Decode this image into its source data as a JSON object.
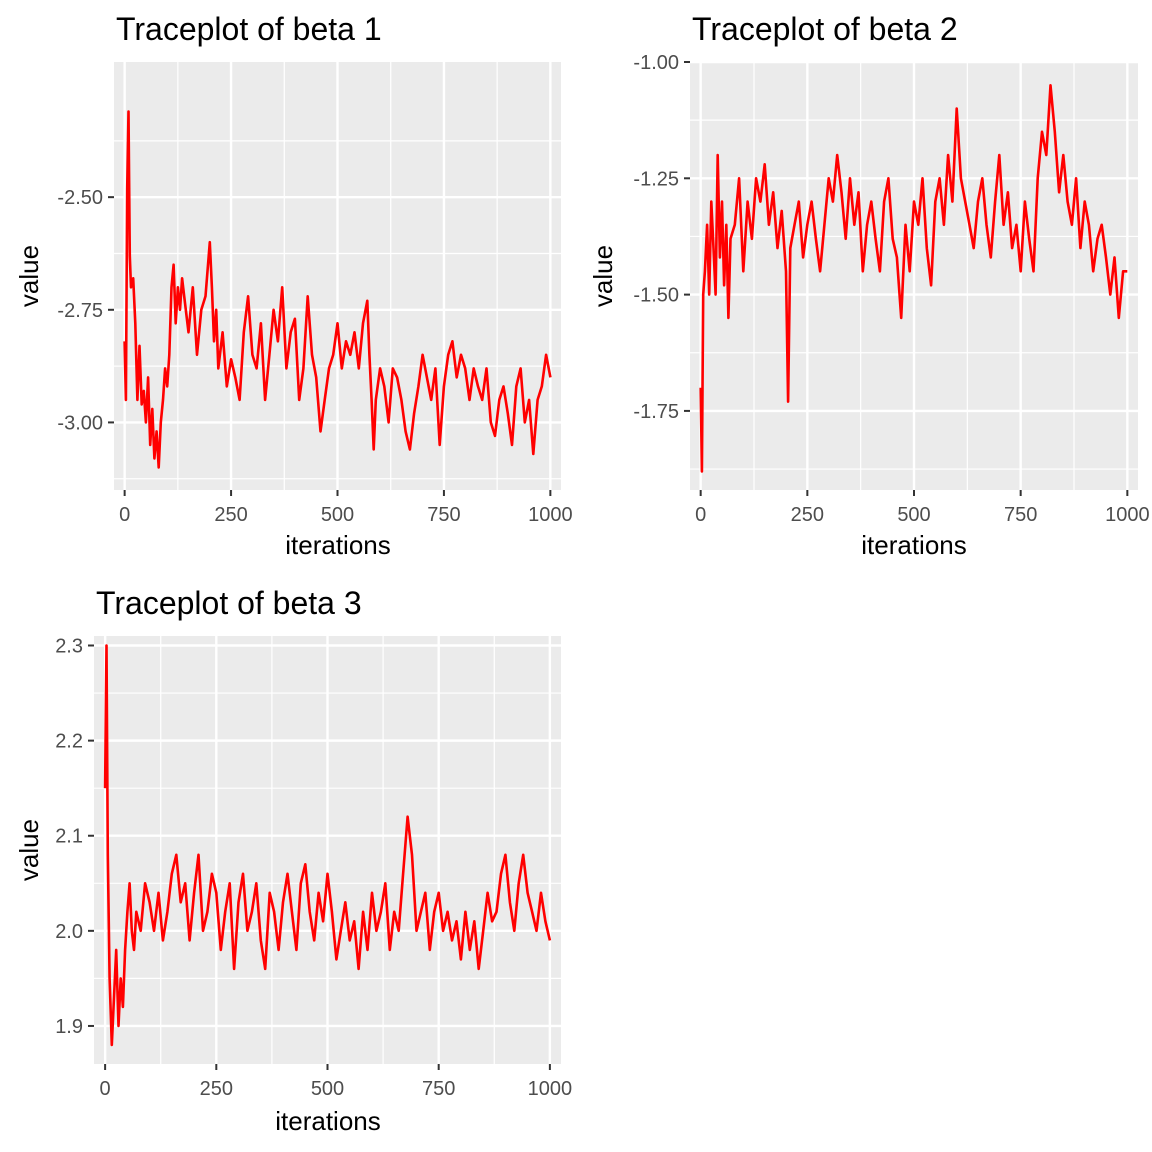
{
  "chart_data": [
    {
      "type": "line",
      "title": "Traceplot of beta 1",
      "xlabel": "iterations",
      "ylabel": "value",
      "xlim": [
        -25,
        1025
      ],
      "ylim": [
        -3.15,
        -2.2
      ],
      "xticks": [
        0,
        250,
        500,
        750,
        1000
      ],
      "yticks": [
        -2.5,
        -2.75,
        -3.0
      ],
      "ytick_labels": [
        "-2.50",
        "-2.75",
        "-3.00"
      ],
      "grid": true,
      "line_color": "#ff0000",
      "series": [
        {
          "x": [
            0,
            3,
            6,
            9,
            12,
            15,
            20,
            25,
            30,
            35,
            40,
            45,
            50,
            55,
            60,
            65,
            70,
            75,
            80,
            85,
            90,
            95,
            100,
            105,
            110,
            115,
            120,
            125,
            130,
            135,
            140,
            150,
            160,
            170,
            180,
            190,
            200,
            205,
            210,
            215,
            220,
            230,
            240,
            250,
            260,
            270,
            280,
            290,
            300,
            310,
            320,
            330,
            340,
            350,
            360,
            370,
            380,
            390,
            400,
            410,
            420,
            430,
            440,
            450,
            460,
            470,
            480,
            490,
            500,
            510,
            520,
            530,
            540,
            550,
            560,
            570,
            575,
            580,
            585,
            590,
            600,
            610,
            620,
            630,
            640,
            650,
            660,
            670,
            680,
            690,
            700,
            710,
            720,
            730,
            740,
            750,
            760,
            770,
            780,
            790,
            800,
            810,
            820,
            830,
            840,
            850,
            860,
            870,
            880,
            890,
            900,
            910,
            920,
            930,
            940,
            950,
            960,
            970,
            980,
            990,
            1000
          ],
          "y": [
            -2.82,
            -2.95,
            -2.48,
            -2.31,
            -2.63,
            -2.7,
            -2.68,
            -2.78,
            -2.95,
            -2.83,
            -2.96,
            -2.93,
            -3.0,
            -2.9,
            -3.05,
            -2.97,
            -3.08,
            -3.02,
            -3.1,
            -3.0,
            -2.95,
            -2.88,
            -2.92,
            -2.85,
            -2.7,
            -2.65,
            -2.78,
            -2.7,
            -2.75,
            -2.68,
            -2.72,
            -2.8,
            -2.7,
            -2.85,
            -2.75,
            -2.72,
            -2.6,
            -2.7,
            -2.82,
            -2.75,
            -2.88,
            -2.8,
            -2.92,
            -2.86,
            -2.9,
            -2.95,
            -2.8,
            -2.72,
            -2.85,
            -2.88,
            -2.78,
            -2.95,
            -2.85,
            -2.75,
            -2.82,
            -2.7,
            -2.88,
            -2.8,
            -2.77,
            -2.95,
            -2.88,
            -2.72,
            -2.85,
            -2.9,
            -3.02,
            -2.95,
            -2.88,
            -2.85,
            -2.78,
            -2.88,
            -2.82,
            -2.85,
            -2.8,
            -2.88,
            -2.78,
            -2.73,
            -2.85,
            -2.95,
            -3.06,
            -2.95,
            -2.88,
            -2.92,
            -3.0,
            -2.88,
            -2.9,
            -2.95,
            -3.02,
            -3.06,
            -2.98,
            -2.92,
            -2.85,
            -2.9,
            -2.95,
            -2.88,
            -3.05,
            -2.92,
            -2.85,
            -2.82,
            -2.9,
            -2.85,
            -2.88,
            -2.95,
            -2.88,
            -2.92,
            -2.95,
            -2.88,
            -3.0,
            -3.03,
            -2.95,
            -2.92,
            -2.98,
            -3.05,
            -2.92,
            -2.88,
            -3.0,
            -2.95,
            -3.07,
            -2.95,
            -2.92,
            -2.85,
            -2.9
          ]
        }
      ]
    },
    {
      "type": "line",
      "title": "Traceplot of beta 2",
      "xlabel": "iterations",
      "ylabel": "value",
      "xlim": [
        -25,
        1025
      ],
      "ylim": [
        -1.92,
        -1.0
      ],
      "xticks": [
        0,
        250,
        500,
        750,
        1000
      ],
      "yticks": [
        -1.0,
        -1.25,
        -1.5,
        -1.75
      ],
      "ytick_labels": [
        "-1.00",
        "-1.25",
        "-1.50",
        "-1.75"
      ],
      "grid": true,
      "line_color": "#ff0000",
      "series": [
        {
          "x": [
            0,
            3,
            6,
            10,
            15,
            20,
            25,
            30,
            35,
            40,
            45,
            50,
            55,
            60,
            65,
            70,
            80,
            90,
            100,
            110,
            120,
            130,
            140,
            150,
            160,
            170,
            180,
            190,
            200,
            205,
            210,
            220,
            230,
            240,
            250,
            260,
            270,
            280,
            290,
            300,
            310,
            320,
            330,
            340,
            350,
            360,
            370,
            380,
            390,
            400,
            410,
            420,
            430,
            440,
            450,
            460,
            470,
            480,
            490,
            500,
            510,
            520,
            530,
            540,
            550,
            560,
            570,
            580,
            590,
            600,
            610,
            620,
            630,
            640,
            650,
            660,
            670,
            680,
            690,
            700,
            710,
            720,
            730,
            740,
            750,
            760,
            770,
            780,
            790,
            800,
            810,
            820,
            830,
            840,
            850,
            860,
            870,
            880,
            890,
            900,
            910,
            920,
            930,
            940,
            950,
            960,
            970,
            980,
            990,
            1000
          ],
          "y": [
            -1.7,
            -1.88,
            -1.5,
            -1.45,
            -1.35,
            -1.5,
            -1.3,
            -1.4,
            -1.5,
            -1.2,
            -1.42,
            -1.3,
            -1.48,
            -1.35,
            -1.55,
            -1.38,
            -1.35,
            -1.25,
            -1.45,
            -1.3,
            -1.38,
            -1.25,
            -1.3,
            -1.22,
            -1.35,
            -1.28,
            -1.4,
            -1.32,
            -1.45,
            -1.73,
            -1.4,
            -1.35,
            -1.3,
            -1.42,
            -1.35,
            -1.3,
            -1.38,
            -1.45,
            -1.35,
            -1.25,
            -1.3,
            -1.2,
            -1.28,
            -1.38,
            -1.25,
            -1.35,
            -1.28,
            -1.45,
            -1.35,
            -1.3,
            -1.38,
            -1.45,
            -1.3,
            -1.25,
            -1.38,
            -1.42,
            -1.55,
            -1.35,
            -1.45,
            -1.3,
            -1.35,
            -1.25,
            -1.4,
            -1.48,
            -1.3,
            -1.25,
            -1.35,
            -1.2,
            -1.3,
            -1.1,
            -1.25,
            -1.3,
            -1.35,
            -1.4,
            -1.3,
            -1.25,
            -1.35,
            -1.42,
            -1.3,
            -1.2,
            -1.35,
            -1.28,
            -1.4,
            -1.35,
            -1.45,
            -1.3,
            -1.38,
            -1.45,
            -1.25,
            -1.15,
            -1.2,
            -1.05,
            -1.15,
            -1.28,
            -1.2,
            -1.3,
            -1.35,
            -1.25,
            -1.4,
            -1.3,
            -1.35,
            -1.45,
            -1.38,
            -1.35,
            -1.42,
            -1.5,
            -1.42,
            -1.55,
            -1.45,
            -1.45
          ]
        }
      ]
    },
    {
      "type": "line",
      "title": "Traceplot of beta 3",
      "xlabel": "iterations",
      "ylabel": "value",
      "xlim": [
        -25,
        1025
      ],
      "ylim": [
        1.86,
        2.31
      ],
      "xticks": [
        0,
        250,
        500,
        750,
        1000
      ],
      "yticks": [
        1.9,
        2.0,
        2.1,
        2.2,
        2.3
      ],
      "ytick_labels": [
        "1.9",
        "2.0",
        "2.1",
        "2.2",
        "2.3"
      ],
      "grid": true,
      "line_color": "#ff0000",
      "series": [
        {
          "x": [
            0,
            3,
            6,
            10,
            15,
            20,
            25,
            30,
            35,
            40,
            45,
            50,
            55,
            60,
            65,
            70,
            80,
            90,
            100,
            110,
            120,
            130,
            140,
            150,
            160,
            170,
            180,
            190,
            200,
            210,
            220,
            230,
            240,
            250,
            260,
            270,
            280,
            290,
            300,
            310,
            320,
            330,
            340,
            350,
            360,
            370,
            380,
            390,
            400,
            410,
            420,
            430,
            440,
            450,
            460,
            470,
            480,
            490,
            500,
            510,
            520,
            530,
            540,
            550,
            560,
            570,
            580,
            590,
            600,
            610,
            620,
            630,
            640,
            650,
            660,
            670,
            680,
            690,
            700,
            710,
            720,
            730,
            740,
            750,
            760,
            770,
            780,
            790,
            800,
            810,
            820,
            830,
            840,
            850,
            860,
            870,
            880,
            890,
            900,
            910,
            920,
            930,
            940,
            950,
            960,
            970,
            980,
            990,
            1000
          ],
          "y": [
            2.15,
            2.3,
            2.08,
            1.95,
            1.88,
            1.93,
            1.98,
            1.9,
            1.95,
            1.92,
            1.98,
            2.02,
            2.05,
            2.0,
            1.98,
            2.02,
            2.0,
            2.05,
            2.03,
            2.0,
            2.04,
            1.99,
            2.02,
            2.06,
            2.08,
            2.03,
            2.05,
            1.99,
            2.04,
            2.08,
            2.0,
            2.02,
            2.06,
            2.04,
            1.98,
            2.02,
            2.05,
            1.96,
            2.03,
            2.06,
            2.0,
            2.02,
            2.05,
            1.99,
            1.96,
            2.04,
            2.02,
            1.98,
            2.03,
            2.06,
            2.02,
            1.98,
            2.05,
            2.07,
            2.02,
            1.99,
            2.04,
            2.01,
            2.06,
            2.02,
            1.97,
            2.0,
            2.03,
            1.99,
            2.01,
            1.96,
            2.02,
            1.98,
            2.04,
            2.0,
            2.02,
            2.05,
            1.98,
            2.02,
            2.0,
            2.06,
            2.12,
            2.08,
            2.0,
            2.02,
            2.04,
            1.98,
            2.02,
            2.04,
            2.0,
            2.02,
            1.99,
            2.01,
            1.97,
            2.02,
            1.98,
            2.01,
            1.96,
            2.0,
            2.04,
            2.01,
            2.02,
            2.06,
            2.08,
            2.03,
            2.0,
            2.05,
            2.08,
            2.04,
            2.02,
            2.0,
            2.04,
            2.01,
            1.99
          ]
        }
      ]
    }
  ]
}
